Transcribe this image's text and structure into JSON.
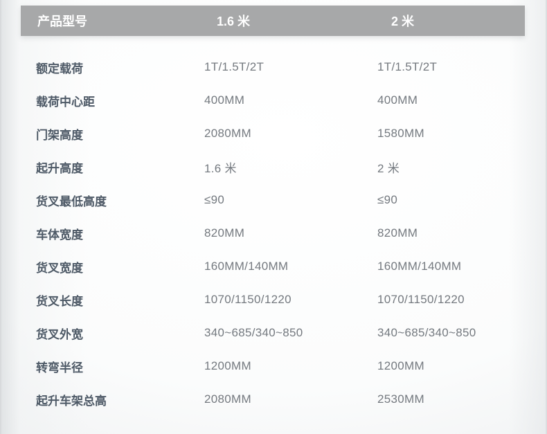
{
  "colors": {
    "header_bg": "#a7a8a9",
    "header_text": "#ffffff",
    "label_text": "#4d5966",
    "value_text": "#74797f"
  },
  "table": {
    "header": {
      "col_label": "产品型号",
      "col1": "1.6 米",
      "col2": "2 米"
    },
    "rows": [
      {
        "label": "额定载荷",
        "v1": "1T/1.5T/2T",
        "v2": "1T/1.5T/2T"
      },
      {
        "label": "载荷中心距",
        "v1": "400MM",
        "v2": "400MM"
      },
      {
        "label": "门架高度",
        "v1": "2080MM",
        "v2": "1580MM"
      },
      {
        "label": "起升高度",
        "v1": "1.6 米",
        "v2": "2 米"
      },
      {
        "label": "货叉最低高度",
        "v1": "≤90",
        "v2": "≤90"
      },
      {
        "label": "车体宽度",
        "v1": "820MM",
        "v2": "820MM"
      },
      {
        "label": "货叉宽度",
        "v1": "160MM/140MM",
        "v2": "160MM/140MM"
      },
      {
        "label": "货叉长度",
        "v1": "1070/1150/1220",
        "v2": "1070/1150/1220"
      },
      {
        "label": "货叉外宽",
        "v1": "340~685/340~850",
        "v2": "340~685/340~850"
      },
      {
        "label": "转弯半径",
        "v1": "1200MM",
        "v2": "1200MM"
      },
      {
        "label": "起升车架总高",
        "v1": "2080MM",
        "v2": "2530MM"
      }
    ]
  }
}
